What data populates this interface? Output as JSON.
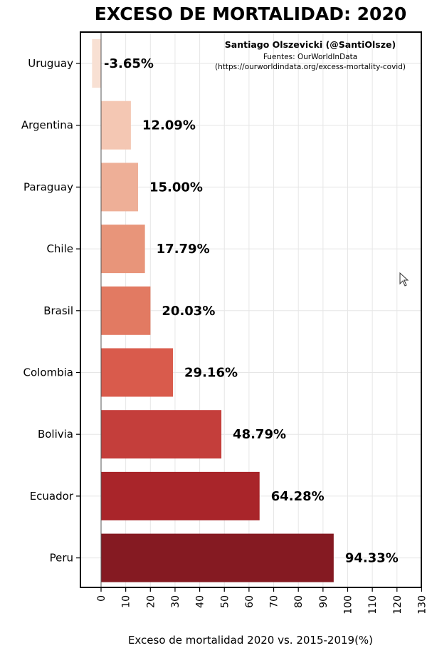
{
  "chart_data": {
    "type": "bar",
    "orientation": "horizontal",
    "title": "EXCESO DE MORTALIDAD: 2020",
    "xlabel": "Exceso de mortalidad 2020 vs. 2015-2019(%)",
    "ylabel": "",
    "xlim": [
      -4,
      130
    ],
    "xticks": [
      0,
      10,
      20,
      30,
      40,
      50,
      60,
      70,
      80,
      90,
      100,
      110,
      120,
      130
    ],
    "grid": true,
    "categories": [
      "Uruguay",
      "Argentina",
      "Paraguay",
      "Chile",
      "Brasil",
      "Colombia",
      "Bolivia",
      "Ecuador",
      "Peru"
    ],
    "values": [
      -3.65,
      12.09,
      15.0,
      17.79,
      20.03,
      29.16,
      48.79,
      64.28,
      94.33
    ],
    "value_labels": [
      "-3.65%",
      "12.09%",
      "15.00%",
      "17.79%",
      "20.03%",
      "29.16%",
      "48.79%",
      "64.28%",
      "94.33%"
    ],
    "bar_colors": [
      "#f8e0d3",
      "#f4c7b3",
      "#eeaf97",
      "#e8957a",
      "#e27a62",
      "#d95b4c",
      "#c43e3b",
      "#a9252a",
      "#851a22"
    ],
    "credits": {
      "author": "Santiago Olszevicki (@SantiOlsze)",
      "source": "Fuentes: OurWorldInData",
      "url": "(https://ourworldindata.org/excess-mortality-covid)"
    }
  }
}
